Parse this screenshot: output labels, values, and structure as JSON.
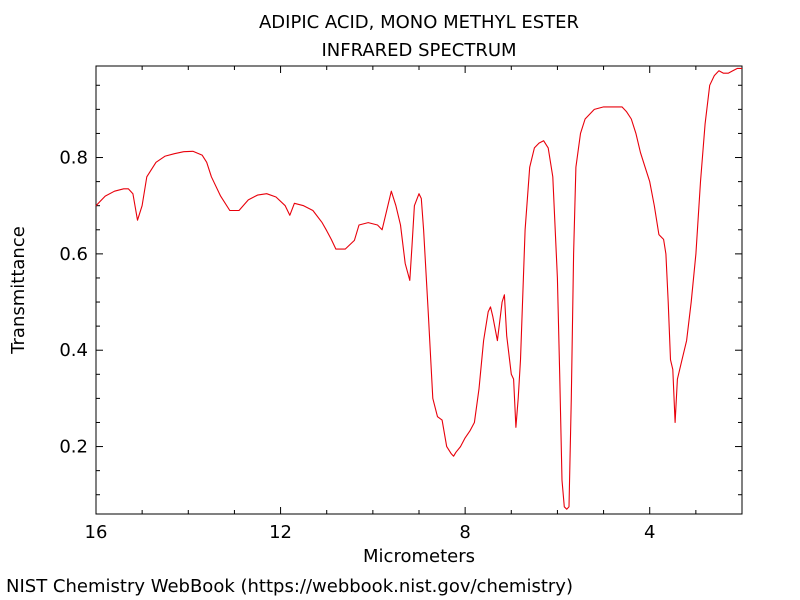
{
  "chart_data": {
    "type": "line",
    "title": "ADIPIC ACID, MONO METHYL ESTER",
    "subtitle": "INFRARED SPECTRUM",
    "xlabel": "Micrometers",
    "ylabel": "Transmittance",
    "xlim": [
      16,
      2
    ],
    "ylim": [
      0.06,
      0.99
    ],
    "x_ticks": [
      16,
      12,
      8,
      4
    ],
    "x_tick_labels": [
      "16",
      "12",
      "8",
      "4"
    ],
    "y_ticks": [
      0.2,
      0.4,
      0.6,
      0.8
    ],
    "y_tick_labels": [
      "0.2",
      "0.4",
      "0.6",
      "0.8"
    ],
    "grid": false,
    "line_color": "#e8000b",
    "series": [
      {
        "points": [
          [
            16.0,
            0.7
          ],
          [
            15.9,
            0.71
          ],
          [
            15.8,
            0.72
          ],
          [
            15.6,
            0.73
          ],
          [
            15.4,
            0.735
          ],
          [
            15.3,
            0.735
          ],
          [
            15.2,
            0.725
          ],
          [
            15.1,
            0.67
          ],
          [
            15.0,
            0.7
          ],
          [
            14.9,
            0.76
          ],
          [
            14.7,
            0.79
          ],
          [
            14.5,
            0.803
          ],
          [
            14.3,
            0.808
          ],
          [
            14.1,
            0.812
          ],
          [
            13.9,
            0.813
          ],
          [
            13.7,
            0.805
          ],
          [
            13.6,
            0.79
          ],
          [
            13.5,
            0.76
          ],
          [
            13.3,
            0.72
          ],
          [
            13.1,
            0.69
          ],
          [
            12.9,
            0.69
          ],
          [
            12.7,
            0.712
          ],
          [
            12.5,
            0.722
          ],
          [
            12.3,
            0.725
          ],
          [
            12.1,
            0.718
          ],
          [
            11.9,
            0.7
          ],
          [
            11.8,
            0.68
          ],
          [
            11.7,
            0.705
          ],
          [
            11.5,
            0.7
          ],
          [
            11.3,
            0.69
          ],
          [
            11.1,
            0.665
          ],
          [
            11.0,
            0.648
          ],
          [
            10.9,
            0.63
          ],
          [
            10.8,
            0.61
          ],
          [
            10.6,
            0.61
          ],
          [
            10.4,
            0.628
          ],
          [
            10.3,
            0.66
          ],
          [
            10.1,
            0.665
          ],
          [
            9.9,
            0.66
          ],
          [
            9.8,
            0.65
          ],
          [
            9.7,
            0.69
          ],
          [
            9.6,
            0.73
          ],
          [
            9.5,
            0.7
          ],
          [
            9.4,
            0.66
          ],
          [
            9.3,
            0.58
          ],
          [
            9.2,
            0.545
          ],
          [
            9.15,
            0.62
          ],
          [
            9.1,
            0.7
          ],
          [
            9.0,
            0.725
          ],
          [
            8.95,
            0.715
          ],
          [
            8.9,
            0.65
          ],
          [
            8.8,
            0.48
          ],
          [
            8.7,
            0.3
          ],
          [
            8.6,
            0.262
          ],
          [
            8.5,
            0.255
          ],
          [
            8.4,
            0.2
          ],
          [
            8.3,
            0.185
          ],
          [
            8.25,
            0.18
          ],
          [
            8.2,
            0.188
          ],
          [
            8.1,
            0.2
          ],
          [
            8.0,
            0.218
          ],
          [
            7.9,
            0.232
          ],
          [
            7.8,
            0.25
          ],
          [
            7.7,
            0.32
          ],
          [
            7.6,
            0.42
          ],
          [
            7.5,
            0.48
          ],
          [
            7.45,
            0.49
          ],
          [
            7.4,
            0.47
          ],
          [
            7.3,
            0.42
          ],
          [
            7.2,
            0.5
          ],
          [
            7.15,
            0.515
          ],
          [
            7.1,
            0.43
          ],
          [
            7.0,
            0.35
          ],
          [
            6.95,
            0.34
          ],
          [
            6.9,
            0.24
          ],
          [
            6.85,
            0.3
          ],
          [
            6.8,
            0.38
          ],
          [
            6.7,
            0.65
          ],
          [
            6.6,
            0.78
          ],
          [
            6.5,
            0.82
          ],
          [
            6.4,
            0.83
          ],
          [
            6.3,
            0.835
          ],
          [
            6.2,
            0.82
          ],
          [
            6.1,
            0.76
          ],
          [
            6.0,
            0.55
          ],
          [
            5.95,
            0.35
          ],
          [
            5.9,
            0.13
          ],
          [
            5.85,
            0.075
          ],
          [
            5.8,
            0.07
          ],
          [
            5.75,
            0.075
          ],
          [
            5.7,
            0.3
          ],
          [
            5.65,
            0.6
          ],
          [
            5.6,
            0.78
          ],
          [
            5.5,
            0.85
          ],
          [
            5.4,
            0.88
          ],
          [
            5.2,
            0.9
          ],
          [
            5.0,
            0.905
          ],
          [
            4.8,
            0.905
          ],
          [
            4.6,
            0.905
          ],
          [
            4.5,
            0.895
          ],
          [
            4.4,
            0.88
          ],
          [
            4.3,
            0.85
          ],
          [
            4.2,
            0.81
          ],
          [
            4.1,
            0.78
          ],
          [
            4.0,
            0.75
          ],
          [
            3.9,
            0.7
          ],
          [
            3.8,
            0.64
          ],
          [
            3.7,
            0.63
          ],
          [
            3.65,
            0.6
          ],
          [
            3.6,
            0.5
          ],
          [
            3.55,
            0.38
          ],
          [
            3.5,
            0.36
          ],
          [
            3.45,
            0.25
          ],
          [
            3.4,
            0.34
          ],
          [
            3.3,
            0.38
          ],
          [
            3.2,
            0.42
          ],
          [
            3.1,
            0.5
          ],
          [
            3.0,
            0.6
          ],
          [
            2.9,
            0.75
          ],
          [
            2.8,
            0.87
          ],
          [
            2.7,
            0.95
          ],
          [
            2.6,
            0.97
          ],
          [
            2.5,
            0.98
          ],
          [
            2.4,
            0.975
          ],
          [
            2.3,
            0.975
          ],
          [
            2.2,
            0.98
          ],
          [
            2.1,
            0.985
          ],
          [
            2.0,
            0.985
          ]
        ]
      }
    ]
  },
  "footer": "NIST Chemistry WebBook (https://webbook.nist.gov/chemistry)"
}
